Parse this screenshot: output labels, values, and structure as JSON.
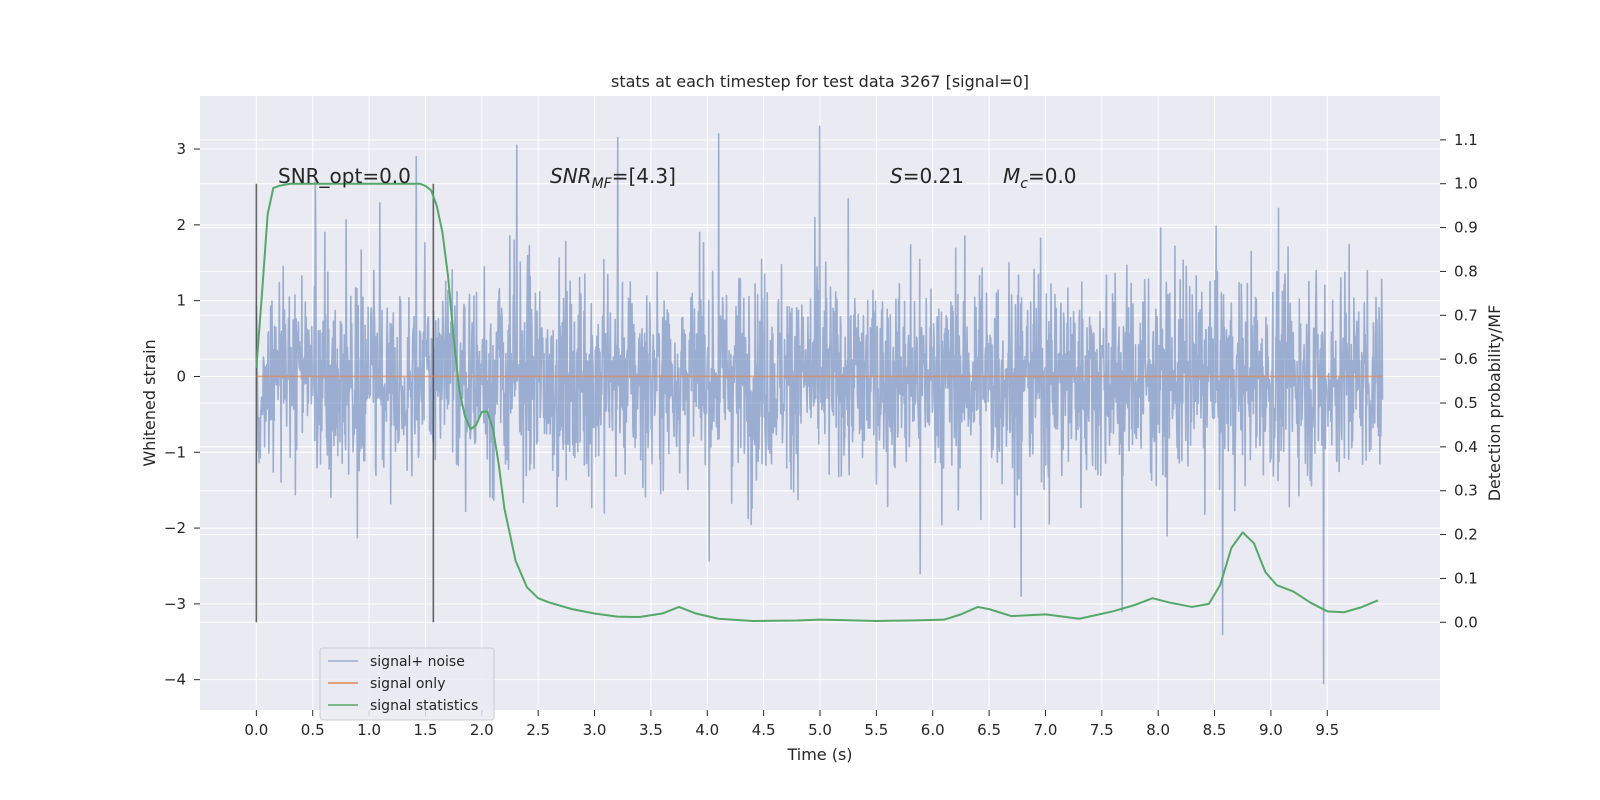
{
  "chart_data": {
    "type": "line",
    "title": "stats at each timestep for test data 3267 [signal=0]",
    "xlabel": "Time (s)",
    "ylabel": "Whitened strain",
    "ylabel_right": "Detection probability/MF",
    "xlim": [
      -0.5,
      10.5
    ],
    "ylim": [
      -4.4,
      3.7
    ],
    "ylim_right": [
      -0.2,
      1.2
    ],
    "x_ticks": [
      "0.0",
      "0.5",
      "1.0",
      "1.5",
      "2.0",
      "2.5",
      "3.0",
      "3.5",
      "4.0",
      "4.5",
      "5.0",
      "5.5",
      "6.0",
      "6.5",
      "7.0",
      "7.5",
      "8.0",
      "8.5",
      "9.0",
      "9.5"
    ],
    "y_ticks": [
      "3",
      "2",
      "1",
      "0",
      "−1",
      "−2",
      "−3",
      "−4"
    ],
    "y_right_ticks": [
      "1.1",
      "1.0",
      "0.9",
      "0.8",
      "0.7",
      "0.6",
      "0.5",
      "0.4",
      "0.3",
      "0.2",
      "0.1",
      "0.0"
    ],
    "grid": true,
    "legend_position": "lower-left",
    "annotations": {
      "snr_opt": "SNR_opt=0.0",
      "snr_mf_base": "SNR",
      "snr_mf_sub": "MF",
      "snr_mf_value": "=[4.3]",
      "s_sym": "S",
      "s_value": "=0.21",
      "mc_base": "M",
      "mc_sub": "c",
      "mc_value": "=0.0"
    },
    "vlines": [
      0.0,
      1.57
    ],
    "series": [
      {
        "name": "signal+ noise",
        "color": "#4c72b0",
        "axis": "left",
        "t_range": [
          0.0,
          9.99
        ],
        "band": [
          -1.45,
          1.4
        ],
        "spike_max": [
          2.6,
          2.9,
          3.05,
          3.15,
          3.2,
          3.3
        ],
        "spike_min": [
          -2.6,
          -2.9,
          -3.1,
          -3.4,
          -4.05
        ]
      },
      {
        "name": "signal only",
        "color": "#dd8452",
        "axis": "left",
        "x": [
          0.0,
          9.99
        ],
        "y": [
          0.0,
          0.0
        ]
      },
      {
        "name": "signal statistics",
        "color": "#55a868",
        "axis": "right",
        "x": [
          0.0,
          0.05,
          0.1,
          0.15,
          0.2,
          0.3,
          0.5,
          1.0,
          1.3,
          1.45,
          1.5,
          1.55,
          1.6,
          1.65,
          1.7,
          1.75,
          1.8,
          1.85,
          1.9,
          1.95,
          2.0,
          2.05,
          2.1,
          2.15,
          2.2,
          2.3,
          2.4,
          2.5,
          2.6,
          2.8,
          3.0,
          3.2,
          3.4,
          3.6,
          3.75,
          3.9,
          4.1,
          4.4,
          4.8,
          5.0,
          5.2,
          5.5,
          5.8,
          6.1,
          6.25,
          6.4,
          6.5,
          6.7,
          7.0,
          7.3,
          7.6,
          7.8,
          7.95,
          8.1,
          8.3,
          8.45,
          8.55,
          8.65,
          8.75,
          8.85,
          8.95,
          9.05,
          9.2,
          9.35,
          9.5,
          9.65,
          9.8,
          9.95
        ],
        "y": [
          0.58,
          0.75,
          0.93,
          0.99,
          0.995,
          1.0,
          1.0,
          1.0,
          1.0,
          1.0,
          0.995,
          0.985,
          0.95,
          0.89,
          0.79,
          0.65,
          0.53,
          0.47,
          0.44,
          0.45,
          0.48,
          0.48,
          0.44,
          0.36,
          0.26,
          0.14,
          0.08,
          0.055,
          0.045,
          0.03,
          0.02,
          0.013,
          0.012,
          0.02,
          0.035,
          0.02,
          0.008,
          0.003,
          0.004,
          0.006,
          0.005,
          0.003,
          0.004,
          0.006,
          0.018,
          0.035,
          0.03,
          0.014,
          0.018,
          0.008,
          0.025,
          0.04,
          0.055,
          0.045,
          0.035,
          0.042,
          0.085,
          0.17,
          0.205,
          0.18,
          0.115,
          0.085,
          0.07,
          0.045,
          0.025,
          0.023,
          0.034,
          0.05
        ]
      }
    ]
  }
}
